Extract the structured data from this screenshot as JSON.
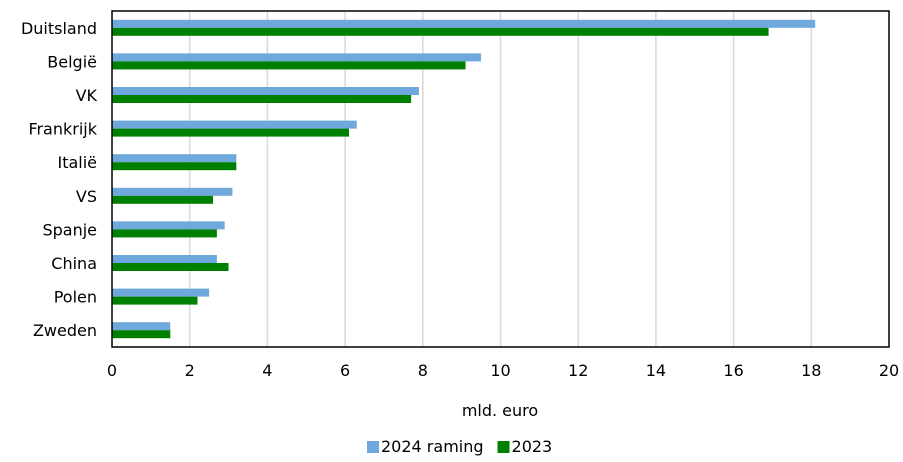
{
  "chart_data": {
    "type": "bar",
    "orientation": "horizontal",
    "categories": [
      "Duitsland",
      "België",
      "VK",
      "Frankrijk",
      "Italië",
      "VS",
      "Spanje",
      "China",
      "Polen",
      "Zweden"
    ],
    "series": [
      {
        "name": "2024 raming",
        "color": "#6fa8dc",
        "values": [
          18.1,
          9.5,
          7.9,
          6.3,
          3.2,
          3.1,
          2.9,
          2.7,
          2.5,
          1.5
        ]
      },
      {
        "name": "2023",
        "color": "#008000",
        "values": [
          16.9,
          9.1,
          7.7,
          6.1,
          3.2,
          2.6,
          2.7,
          3.0,
          2.2,
          1.5
        ]
      }
    ],
    "xlabel": "mld. euro",
    "ylabel": "",
    "xlim": [
      0,
      20
    ],
    "xticks": [
      "0",
      "2",
      "4",
      "6",
      "8",
      "10",
      "12",
      "14",
      "16",
      "18",
      "20"
    ],
    "grid": "vertical",
    "legend_position": "bottom"
  }
}
